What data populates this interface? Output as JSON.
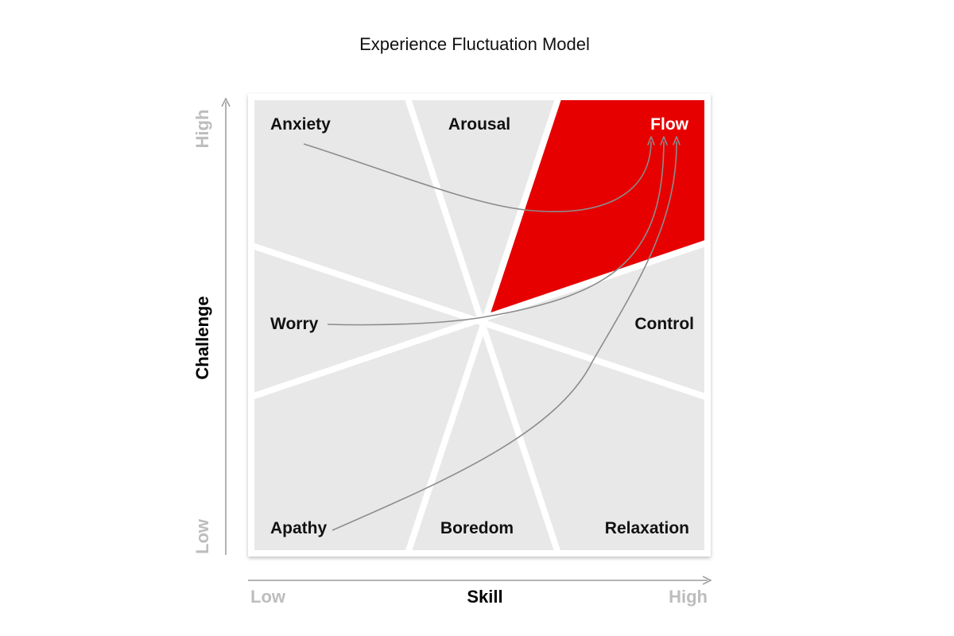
{
  "title": "Experience Fluctuation Model",
  "regions": {
    "anxiety": "Anxiety",
    "arousal": "Arousal",
    "flow": "Flow",
    "worry": "Worry",
    "control": "Control",
    "apathy": "Apathy",
    "boredom": "Boredom",
    "relaxation": "Relaxation"
  },
  "axes": {
    "x": {
      "title": "Skill",
      "low": "Low",
      "high": "High"
    },
    "y": {
      "title": "Challenge",
      "low": "Low",
      "high": "High"
    }
  },
  "colors": {
    "flow_region": "#e60000",
    "regions": "#e8e8e8",
    "dividers": "#ffffff",
    "arrows": "#8c8c8c",
    "axis_end_labels": "#bdbdbd"
  },
  "arrows": [
    {
      "from": "Anxiety",
      "to": "Flow"
    },
    {
      "from": "Worry",
      "to": "Flow"
    },
    {
      "from": "Apathy",
      "to": "Flow"
    }
  ]
}
